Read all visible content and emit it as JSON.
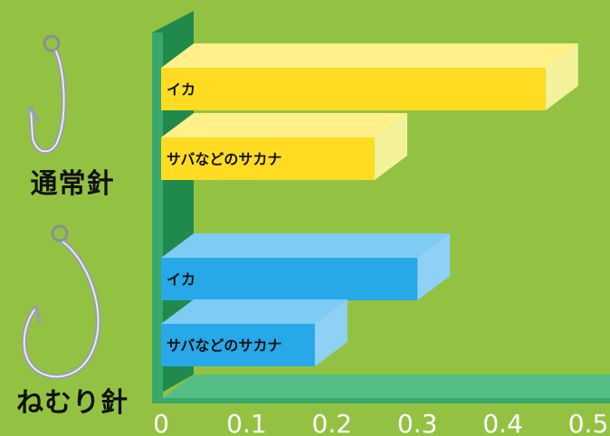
{
  "colors": {
    "background": "#93c242",
    "axis_front": "#3aa86a",
    "axis_side": "#1f8a4c",
    "axis_top": "#55be86",
    "yellow_front": "#ffdc22",
    "yellow_top": "#fff08a",
    "yellow_side": "#f3f29a",
    "blue_front": "#27a8e8",
    "blue_top": "#7ecbf4",
    "blue_side": "#8fd0f5",
    "tick_text": "#ffffff",
    "group_text": "#111111"
  },
  "chart_data": {
    "type": "bar",
    "orientation": "horizontal",
    "xlim": [
      0,
      0.5
    ],
    "xticks": [
      "0",
      "0.1",
      "0.2",
      "0.3",
      "0.4",
      "0.5"
    ],
    "groups": [
      {
        "name": "通常針",
        "color": "yellow",
        "icon": "j-hook-icon",
        "bars": [
          {
            "label": "イカ",
            "value": 0.45
          },
          {
            "label": "サバなどのサカナ",
            "value": 0.25
          }
        ]
      },
      {
        "name": "ねむり針",
        "color": "blue",
        "icon": "circle-hook-icon",
        "bars": [
          {
            "label": "イカ",
            "value": 0.3
          },
          {
            "label": "サバなどのサカナ",
            "value": 0.18
          }
        ]
      }
    ]
  }
}
